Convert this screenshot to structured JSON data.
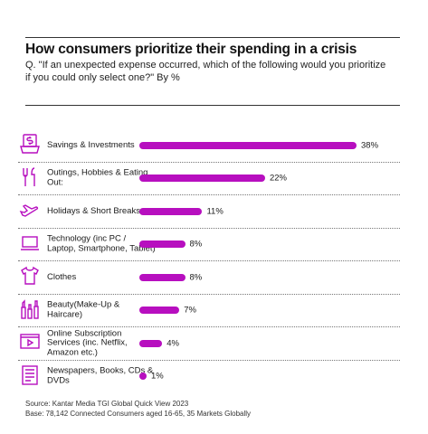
{
  "header": {
    "title": "How consumers prioritize their spending in a crisis",
    "subtitle": "Q. \"If an unexpected expense occurred, which of the following would you prioritize if you could only select one?\" By %"
  },
  "chart_data": {
    "type": "bar",
    "orientation": "horizontal",
    "categories": [
      "Savings & Investments",
      "Outings, Hobbies & Eating Out:",
      "Holidays & Short Breaks",
      "Technology (inc PC / Laptop, Smartphone, Tablet)",
      "Clothes",
      "Beauty(Make-Up & Haircare)",
      "Online Subscription Services (inc. Netflix, Amazon etc.)",
      "Newspapers, Books, CDs & DVDs"
    ],
    "values": [
      38,
      22,
      11,
      8,
      8,
      7,
      4,
      1
    ],
    "value_labels": [
      "38%",
      "22%",
      "11%",
      "8%",
      "8%",
      "7%",
      "4%",
      "1%"
    ],
    "icons": [
      "piggy-bank-icon",
      "cutlery-icon",
      "airplane-icon",
      "laptop-icon",
      "shirt-icon",
      "cosmetics-icon",
      "video-player-icon",
      "newspaper-icon"
    ],
    "xlim": [
      0,
      38
    ],
    "bar_color": "#b70fbf",
    "grid": false
  },
  "footer": {
    "source": "Source: Kantar Media TGI Global Quick View 2023",
    "base": "Base: 78,142 Connected Consumers aged 16-65, 35 Markets Globally"
  }
}
